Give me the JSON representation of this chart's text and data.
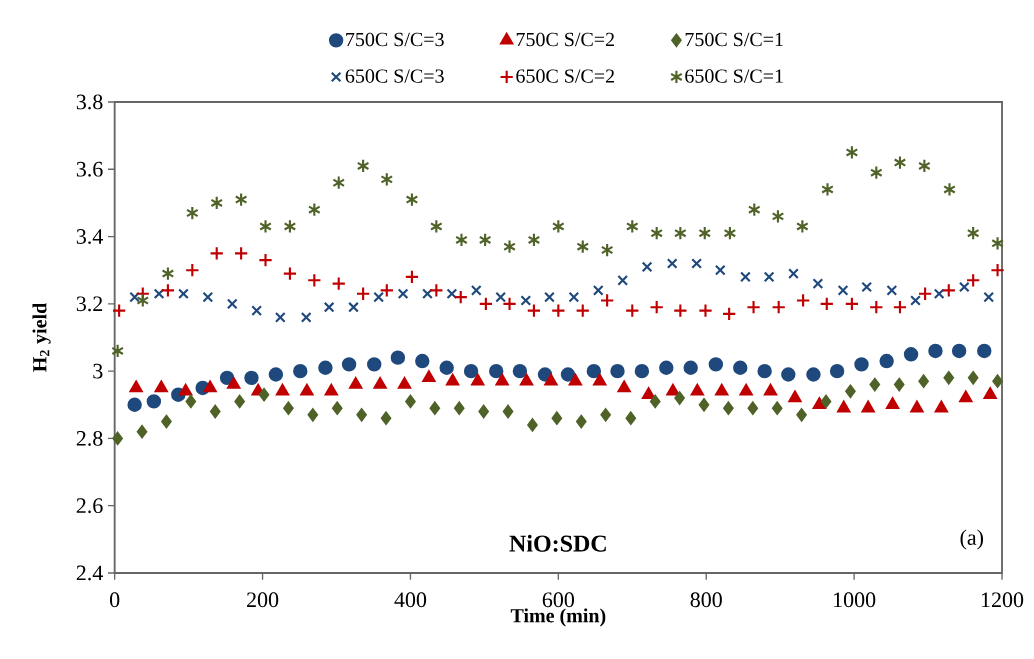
{
  "chart_data": {
    "type": "scatter",
    "xlabel": "Time (min)",
    "ylabel": "H$_{2}$ yield",
    "xlim": [
      0,
      1200
    ],
    "xticks": [
      0,
      200,
      400,
      600,
      800,
      1000,
      1200
    ],
    "ylim": [
      2.4,
      3.8
    ],
    "yticks": [
      2.4,
      2.6,
      2.8,
      3,
      3.2,
      3.4,
      3.6,
      3.8
    ],
    "grid": false,
    "legend": "top",
    "annotations": [
      "NiO:SDC",
      "(a)"
    ],
    "series": [
      {
        "name": "750C S/C=3",
        "color": "#1f497d",
        "marker": "circle",
        "x": [
          27,
          53,
          86,
          119,
          152,
          185,
          218,
          251,
          285,
          317,
          351,
          383,
          416,
          449,
          482,
          516,
          548,
          582,
          613,
          648,
          680,
          713,
          746,
          779,
          813,
          846,
          879,
          911,
          945,
          977,
          1010,
          1044,
          1077,
          1110,
          1142,
          1176
        ],
        "values": [
          2.9,
          2.91,
          2.93,
          2.95,
          2.98,
          2.98,
          2.99,
          3.0,
          3.01,
          3.02,
          3.02,
          3.04,
          3.03,
          3.01,
          3.0,
          3.0,
          3.0,
          2.99,
          2.99,
          3.0,
          3.0,
          3.0,
          3.01,
          3.01,
          3.02,
          3.01,
          3.0,
          2.99,
          2.99,
          3.0,
          3.02,
          3.03,
          3.05,
          3.06,
          3.06,
          3.06
        ]
      },
      {
        "name": "750C S/C=2",
        "color": "#c00000",
        "marker": "triangle",
        "x": [
          29,
          63,
          96,
          129,
          161,
          194,
          227,
          260,
          293,
          326,
          359,
          392,
          425,
          457,
          491,
          524,
          557,
          590,
          623,
          656,
          689,
          722,
          755,
          788,
          821,
          854,
          887,
          920,
          953,
          986,
          1019,
          1052,
          1085,
          1118,
          1151,
          1184
        ],
        "values": [
          2.95,
          2.95,
          2.94,
          2.95,
          2.96,
          2.94,
          2.94,
          2.94,
          2.94,
          2.96,
          2.96,
          2.96,
          2.98,
          2.97,
          2.97,
          2.97,
          2.97,
          2.97,
          2.97,
          2.97,
          2.95,
          2.93,
          2.94,
          2.94,
          2.94,
          2.94,
          2.94,
          2.92,
          2.9,
          2.89,
          2.89,
          2.9,
          2.89,
          2.89,
          2.92,
          2.93
        ]
      },
      {
        "name": "750C S/C=1",
        "color": "#4f6228",
        "marker": "diamond",
        "x": [
          4,
          37,
          70,
          103,
          136,
          169,
          202,
          235,
          268,
          301,
          334,
          367,
          400,
          433,
          466,
          499,
          532,
          565,
          598,
          631,
          664,
          698,
          731,
          764,
          797,
          830,
          863,
          896,
          929,
          962,
          995,
          1028,
          1061,
          1094,
          1128,
          1161,
          1194
        ],
        "values": [
          2.8,
          2.82,
          2.85,
          2.91,
          2.88,
          2.91,
          2.93,
          2.89,
          2.87,
          2.89,
          2.87,
          2.86,
          2.91,
          2.89,
          2.89,
          2.88,
          2.88,
          2.84,
          2.86,
          2.85,
          2.87,
          2.86,
          2.91,
          2.92,
          2.9,
          2.89,
          2.89,
          2.89,
          2.87,
          2.91,
          2.94,
          2.96,
          2.96,
          2.97,
          2.98,
          2.98,
          2.97
        ]
      },
      {
        "name": "650C S/C=3",
        "color": "#1f497d",
        "marker": "cross",
        "x": [
          27,
          60,
          93,
          126,
          159,
          192,
          224,
          259,
          290,
          323,
          357,
          390,
          423,
          456,
          489,
          522,
          556,
          588,
          621,
          654,
          687,
          720,
          754,
          787,
          819,
          853,
          885,
          918,
          951,
          985,
          1017,
          1051,
          1083,
          1115,
          1149,
          1182
        ],
        "values": [
          3.22,
          3.23,
          3.23,
          3.22,
          3.2,
          3.18,
          3.16,
          3.16,
          3.19,
          3.19,
          3.22,
          3.23,
          3.23,
          3.23,
          3.24,
          3.22,
          3.21,
          3.22,
          3.22,
          3.24,
          3.27,
          3.31,
          3.32,
          3.32,
          3.3,
          3.28,
          3.28,
          3.29,
          3.26,
          3.24,
          3.25,
          3.24,
          3.21,
          3.23,
          3.25,
          3.22
        ]
      },
      {
        "name": "650C S/C=2",
        "color": "#c00000",
        "marker": "plus",
        "x": [
          6,
          38,
          72,
          105,
          138,
          171,
          204,
          237,
          270,
          303,
          336,
          368,
          402,
          435,
          468,
          502,
          534,
          567,
          600,
          633,
          666,
          700,
          733,
          765,
          799,
          831,
          864,
          898,
          931,
          963,
          997,
          1030,
          1062,
          1096,
          1128,
          1161,
          1194
        ],
        "values": [
          3.18,
          3.23,
          3.24,
          3.3,
          3.35,
          3.35,
          3.33,
          3.29,
          3.27,
          3.26,
          3.23,
          3.24,
          3.28,
          3.24,
          3.22,
          3.2,
          3.2,
          3.18,
          3.18,
          3.18,
          3.21,
          3.18,
          3.19,
          3.18,
          3.18,
          3.17,
          3.19,
          3.19,
          3.21,
          3.2,
          3.2,
          3.19,
          3.19,
          3.23,
          3.24,
          3.27,
          3.3
        ]
      },
      {
        "name": "650C S/C=1",
        "color": "#4f6228",
        "marker": "cross",
        "x": [
          4,
          38,
          72,
          105,
          138,
          171,
          204,
          237,
          270,
          303,
          336,
          368,
          402,
          435,
          469,
          501,
          534,
          567,
          600,
          633,
          666,
          700,
          733,
          765,
          798,
          832,
          865,
          897,
          930,
          964,
          997,
          1030,
          1062,
          1095,
          1129,
          1161,
          1194
        ],
        "values": [
          3.06,
          3.21,
          3.29,
          3.47,
          3.5,
          3.51,
          3.43,
          3.43,
          3.48,
          3.56,
          3.61,
          3.57,
          3.51,
          3.43,
          3.39,
          3.39,
          3.37,
          3.39,
          3.43,
          3.37,
          3.36,
          3.43,
          3.41,
          3.41,
          3.41,
          3.41,
          3.48,
          3.46,
          3.43,
          3.54,
          3.65,
          3.59,
          3.62,
          3.61,
          3.54,
          3.41,
          3.38
        ]
      }
    ]
  }
}
